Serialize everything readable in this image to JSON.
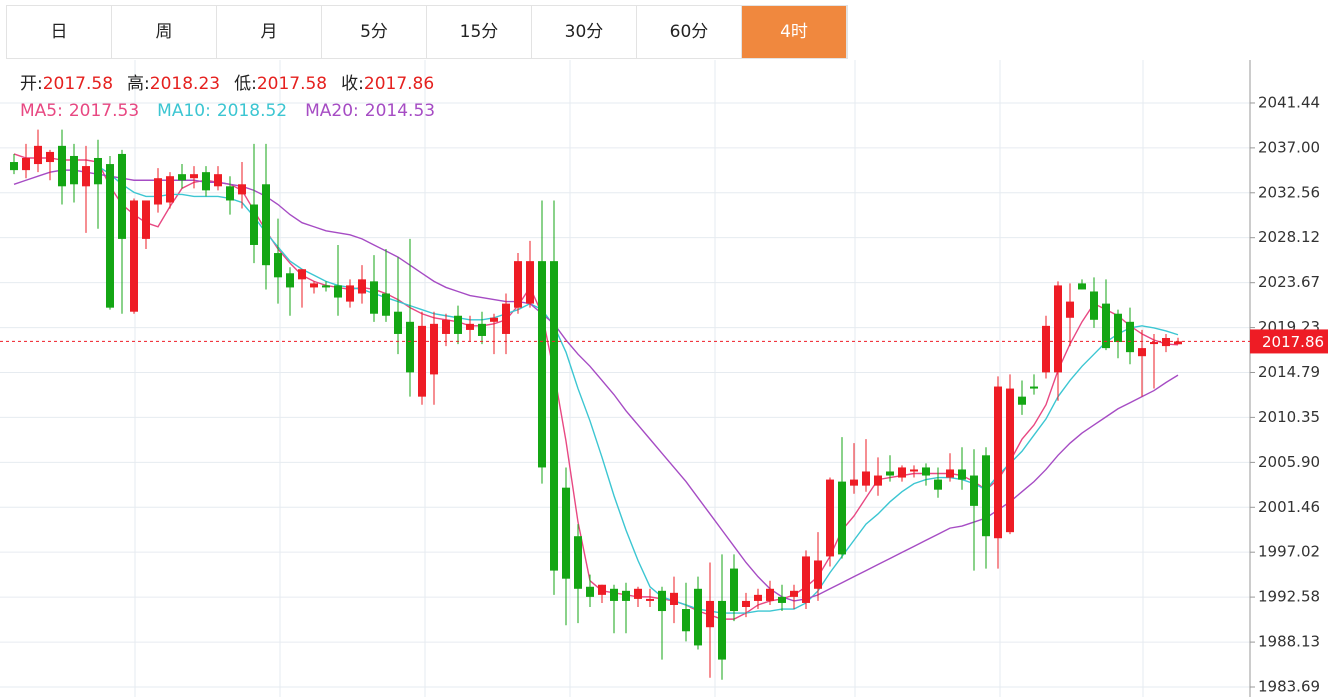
{
  "tabs": {
    "items": [
      "日",
      "周",
      "月",
      "5分",
      "15分",
      "30分",
      "60分",
      "4时"
    ],
    "active": 7
  },
  "chart_data": {
    "type": "candlestick",
    "ohlc_labels": [
      "开:",
      "高:",
      "低:",
      "收:"
    ],
    "up_color": "#ee1c25",
    "down_color": "#14a614",
    "ylim": [
      1982.7,
      2045.69
    ],
    "yticks": [
      2041.44,
      {
        "value": 2037.0,
        "label": "2037.00"
      },
      2032.56,
      2028.12,
      2023.67,
      2019.23,
      2014.79,
      2010.35,
      {
        "value": 2005.9,
        "label": "2005.90"
      },
      2001.46,
      1997.02,
      1992.58,
      1988.13,
      1983.69
    ],
    "grid": true,
    "candles": {
      "open": [
        2035.6,
        2034.8,
        2035.4,
        2035.6,
        2037.2,
        2036.2,
        2033.2,
        2036,
        2035.4,
        2036.4,
        2020.8,
        2028,
        2031.4,
        2031.6,
        2034.4,
        2034,
        2034.6,
        2033.2,
        2033.2,
        2032.4,
        2031.4,
        2033.4,
        2026.6,
        2024.6,
        2024,
        2023.2,
        2023.4,
        2023.4,
        2021.8,
        2022.6,
        2023.8,
        2022.6,
        2020.8,
        2019.8,
        2012.4,
        2014.6,
        2018.6,
        2020.4,
        2019,
        2019.6,
        2019.8,
        2018.6,
        2021.2,
        2021.6,
        2025.8,
        2025.8,
        2003.4,
        1998.6,
        1993.6,
        1992.8,
        1993.4,
        1993.2,
        1992.4,
        1992.2,
        1993.2,
        1991.8,
        1991.4,
        1993.4,
        1989.6,
        1992.2,
        1995.4,
        1991.6,
        1992.2,
        1992.2,
        1992.6,
        1992.6,
        1992,
        1993.4,
        1996.6,
        2004,
        2003.6,
        2003.6,
        2003.6,
        2005,
        2004.4,
        2005,
        2005.4,
        2004.2,
        2004.4,
        2005.2,
        2004.6,
        2006.6,
        1998.4,
        1999,
        2012.4,
        2013.4,
        2014.8,
        2014.8,
        2020.2,
        2023.6,
        2022.8,
        2021.6,
        2020.6,
        2019.8,
        2016.4,
        2017.6,
        2017.4,
        2017.58
      ],
      "high": [
        2036.4,
        2037.4,
        2038.8,
        2036.8,
        2038.8,
        2037.4,
        2037.2,
        2037.8,
        2036.2,
        2036.8,
        2032.0,
        2031.8,
        2035,
        2034.6,
        2035.4,
        2035.2,
        2035.2,
        2035.2,
        2034.2,
        2035.6,
        2037.4,
        2037.4,
        2030,
        2025.2,
        2025,
        2023.8,
        2023.8,
        2027.4,
        2024,
        2025.4,
        2026.4,
        2027,
        2026.2,
        2028,
        2020.8,
        2020.8,
        2020.6,
        2021.4,
        2020.4,
        2020.8,
        2020.6,
        2022.6,
        2026.6,
        2027.8,
        2031.8,
        2031.8,
        2005.4,
        1999.8,
        1994.8,
        1993.8,
        1993.8,
        1994,
        1993.6,
        1993.4,
        1993.6,
        1994.6,
        1994,
        1994.6,
        1996,
        1996.8,
        1996.8,
        1993,
        1993.4,
        1994.2,
        1993.8,
        1993.8,
        1997.2,
        1999,
        2004.4,
        2008.4,
        2007.8,
        2008.2,
        2006.4,
        2006.6,
        2005.6,
        2005.6,
        2005.8,
        2005.4,
        2006.8,
        2007.4,
        2007.2,
        2007.4,
        2014.4,
        2014.6,
        2014,
        2014.6,
        2020.4,
        2023.8,
        2023.6,
        2024,
        2024.2,
        2024,
        2021,
        2021.2,
        2019,
        2018.6,
        2018.6,
        2018.23
      ],
      "low": [
        2034.4,
        2034,
        2034.6,
        2033.8,
        2031.4,
        2031.6,
        2028.6,
        2029,
        2021,
        2020.6,
        2020.6,
        2027,
        2030.6,
        2031,
        2033,
        2033,
        2032.2,
        2032.8,
        2030.4,
        2031,
        2025.6,
        2023,
        2021.6,
        2020.4,
        2021.2,
        2022.6,
        2022.8,
        2020.4,
        2021.2,
        2021.6,
        2019.8,
        2019.8,
        2016.6,
        2012.4,
        2011.6,
        2011.6,
        2017.4,
        2017.6,
        2017.8,
        2017.6,
        2016.6,
        2016.6,
        2020.6,
        2021.2,
        2003.8,
        1992.8,
        1989.8,
        1990,
        1991.6,
        1992,
        1989,
        1989,
        1991.6,
        1991.6,
        1986.4,
        1990,
        1988.2,
        1987.4,
        1984.6,
        1984.4,
        1990.2,
        1990.6,
        1991.4,
        1991.8,
        1991.2,
        1991.4,
        1991.4,
        1992.2,
        1995.6,
        1996.4,
        2002.8,
        2003,
        2002.6,
        2004,
        2004,
        2004.4,
        2003.6,
        2002.4,
        2004,
        2003.2,
        1995.2,
        1995.4,
        1995.4,
        1998.8,
        2010.6,
        2012.6,
        2014.2,
        2012,
        2017.4,
        2023,
        2019.2,
        2017,
        2016.2,
        2015.6,
        2012.4,
        2013.2,
        2016.8,
        2017.58
      ],
      "close": [
        2034.8,
        2036,
        2037.2,
        2036.6,
        2033.2,
        2033.4,
        2035.2,
        2033.4,
        2021.2,
        2028,
        2031.8,
        2031.8,
        2034,
        2034.2,
        2033.8,
        2034.4,
        2032.8,
        2034.4,
        2031.8,
        2033.4,
        2027.4,
        2025.4,
        2024.2,
        2023.2,
        2025,
        2023.6,
        2023.2,
        2022.2,
        2023.4,
        2024,
        2020.6,
        2020.4,
        2018.6,
        2014.8,
        2019.4,
        2019.6,
        2020,
        2018.6,
        2019.6,
        2018.4,
        2020.2,
        2021.6,
        2025.8,
        2025.8,
        2005.4,
        1995.2,
        1994.4,
        1993.4,
        1992.6,
        1993.8,
        1992.2,
        1992.2,
        1993.4,
        1992.4,
        1991.2,
        1993,
        1989.2,
        1987.8,
        1992.2,
        1986.4,
        1991.2,
        1992.2,
        1992.8,
        1993.4,
        1992,
        1993.2,
        1996.6,
        1996.2,
        2004.2,
        1996.8,
        2004.2,
        2005,
        2004.6,
        2004.6,
        2005.4,
        2005.2,
        2004.6,
        2003.2,
        2005.2,
        2004.2,
        2001.6,
        1998.6,
        2013.4,
        2013.2,
        2011.6,
        2013.2,
        2019.4,
        2023.4,
        2021.8,
        2023,
        2020,
        2017.2,
        2017.8,
        2016.8,
        2017.2,
        2017.8,
        2018.2,
        2017.86
      ]
    },
    "lines": [
      {
        "name": "MA5:",
        "color": "#e84882",
        "values": [
          2036.4,
          2036,
          2036,
          2036,
          2035.8,
          2035.8,
          2035.8,
          2035.6,
          2033.2,
          2031.4,
          2030.4,
          2029.6,
          2029.2,
          2031.2,
          2033,
          2033.6,
          2033.8,
          2033.6,
          2033.4,
          2032.8,
          2030.8,
          2028.8,
          2027,
          2025.6,
          2024.4,
          2023.8,
          2023.4,
          2023.2,
          2023,
          2023.2,
          2023,
          2022.6,
          2022,
          2021.2,
          2020.6,
          2020.2,
          2020,
          2019.8,
          2019.4,
          2019.4,
          2019.6,
          2020,
          2021.4,
          2023.2,
          2020.6,
          2014.8,
          2008,
          2000,
          1994.2,
          1993.2,
          1993,
          1992.8,
          1992.6,
          1992.6,
          1992.4,
          1992.2,
          1991.8,
          1991.2,
          1990.8,
          1990.4,
          1990.4,
          1991,
          1991.8,
          1992.2,
          1992.4,
          1992.8,
          1993.6,
          1994.6,
          1996.6,
          1999.2,
          2000.6,
          2002.4,
          2004.2,
          2004.4,
          2004.6,
          2004.8,
          2004.8,
          2004.8,
          2004.8,
          2004.6,
          2004,
          2003.2,
          2004.2,
          2006,
          2008.2,
          2009.6,
          2011.6,
          2015,
          2017.6,
          2019.8,
          2021.6,
          2021,
          2020.4,
          2019.4,
          2018.6,
          2018,
          2017.6,
          2017.53
        ]
      },
      {
        "name": "MA10:",
        "color": "#3cc6d2",
        "values": [
          null,
          null,
          null,
          null,
          null,
          null,
          null,
          2035.2,
          2034.4,
          2033.4,
          2032.6,
          2032.2,
          2032.2,
          2032.4,
          2032.4,
          2032.2,
          2032.2,
          2032.2,
          2032,
          2031.6,
          2030.2,
          2028.6,
          2027.2,
          2025.8,
          2025,
          2024.4,
          2023.8,
          2023.4,
          2023.2,
          2023,
          2022.6,
          2022.2,
          2021.8,
          2021.4,
          2021,
          2020.6,
          2020.4,
          2020.2,
          2020,
          2020,
          2020.2,
          2020.6,
          2021,
          2021.6,
          2021,
          2019.4,
          2016.8,
          2013.2,
          2010,
          2006.4,
          2002.6,
          1999.2,
          1996.2,
          1993.6,
          1992.6,
          1992.2,
          1991.8,
          1991.4,
          1991.2,
          1991,
          1991,
          1991,
          1991.2,
          1991.2,
          1991.4,
          1991.4,
          1992,
          1993.2,
          1995,
          1996.6,
          1998.2,
          1999.8,
          2000.8,
          2002,
          2003,
          2003.8,
          2004.2,
          2004.4,
          2004.4,
          2004.2,
          2003.8,
          2003.2,
          2004.6,
          2005.8,
          2007,
          2008.6,
          2010.2,
          2012.4,
          2014,
          2015.4,
          2016.6,
          2017.8,
          2018.6,
          2019.2,
          2019.4,
          2019.2,
          2018.9,
          2018.52
        ]
      },
      {
        "name": "MA20:",
        "color": "#a64cc4",
        "values": [
          2033.4,
          2033.8,
          2034.2,
          2034.6,
          2034.8,
          2034.8,
          2034.6,
          2034.4,
          2034.2,
          2034,
          2033.8,
          2033.8,
          2033.8,
          2033.8,
          2033.8,
          2033.8,
          2033.6,
          2033.6,
          2033.4,
          2033.2,
          2032.8,
          2032.2,
          2031.4,
          2030.4,
          2029.6,
          2029.2,
          2028.8,
          2028.6,
          2028.4,
          2028,
          2027.4,
          2026.8,
          2026.2,
          2025.4,
          2024.6,
          2023.8,
          2023.2,
          2022.8,
          2022.4,
          2022.2,
          2022,
          2021.8,
          2021.8,
          2021.6,
          2020.6,
          2019.6,
          2018,
          2016.6,
          2015.4,
          2014,
          2012.6,
          2011,
          2009.6,
          2008.2,
          2006.8,
          2005.4,
          2004,
          2002.4,
          2000.8,
          1999.2,
          1997.6,
          1996,
          1994.6,
          1993.4,
          1992.6,
          1992.2,
          1992.4,
          1992.8,
          1993.4,
          1994,
          1994.6,
          1995.2,
          1995.8,
          1996.4,
          1997,
          1997.6,
          1998.2,
          1998.8,
          1999.4,
          1999.6,
          2000,
          2000.4,
          2001.2,
          2002,
          2003,
          2004,
          2005.2,
          2006.6,
          2007.8,
          2008.8,
          2009.6,
          2010.4,
          2011.2,
          2011.8,
          2012.4,
          2013,
          2013.8,
          2014.53
        ]
      }
    ]
  }
}
